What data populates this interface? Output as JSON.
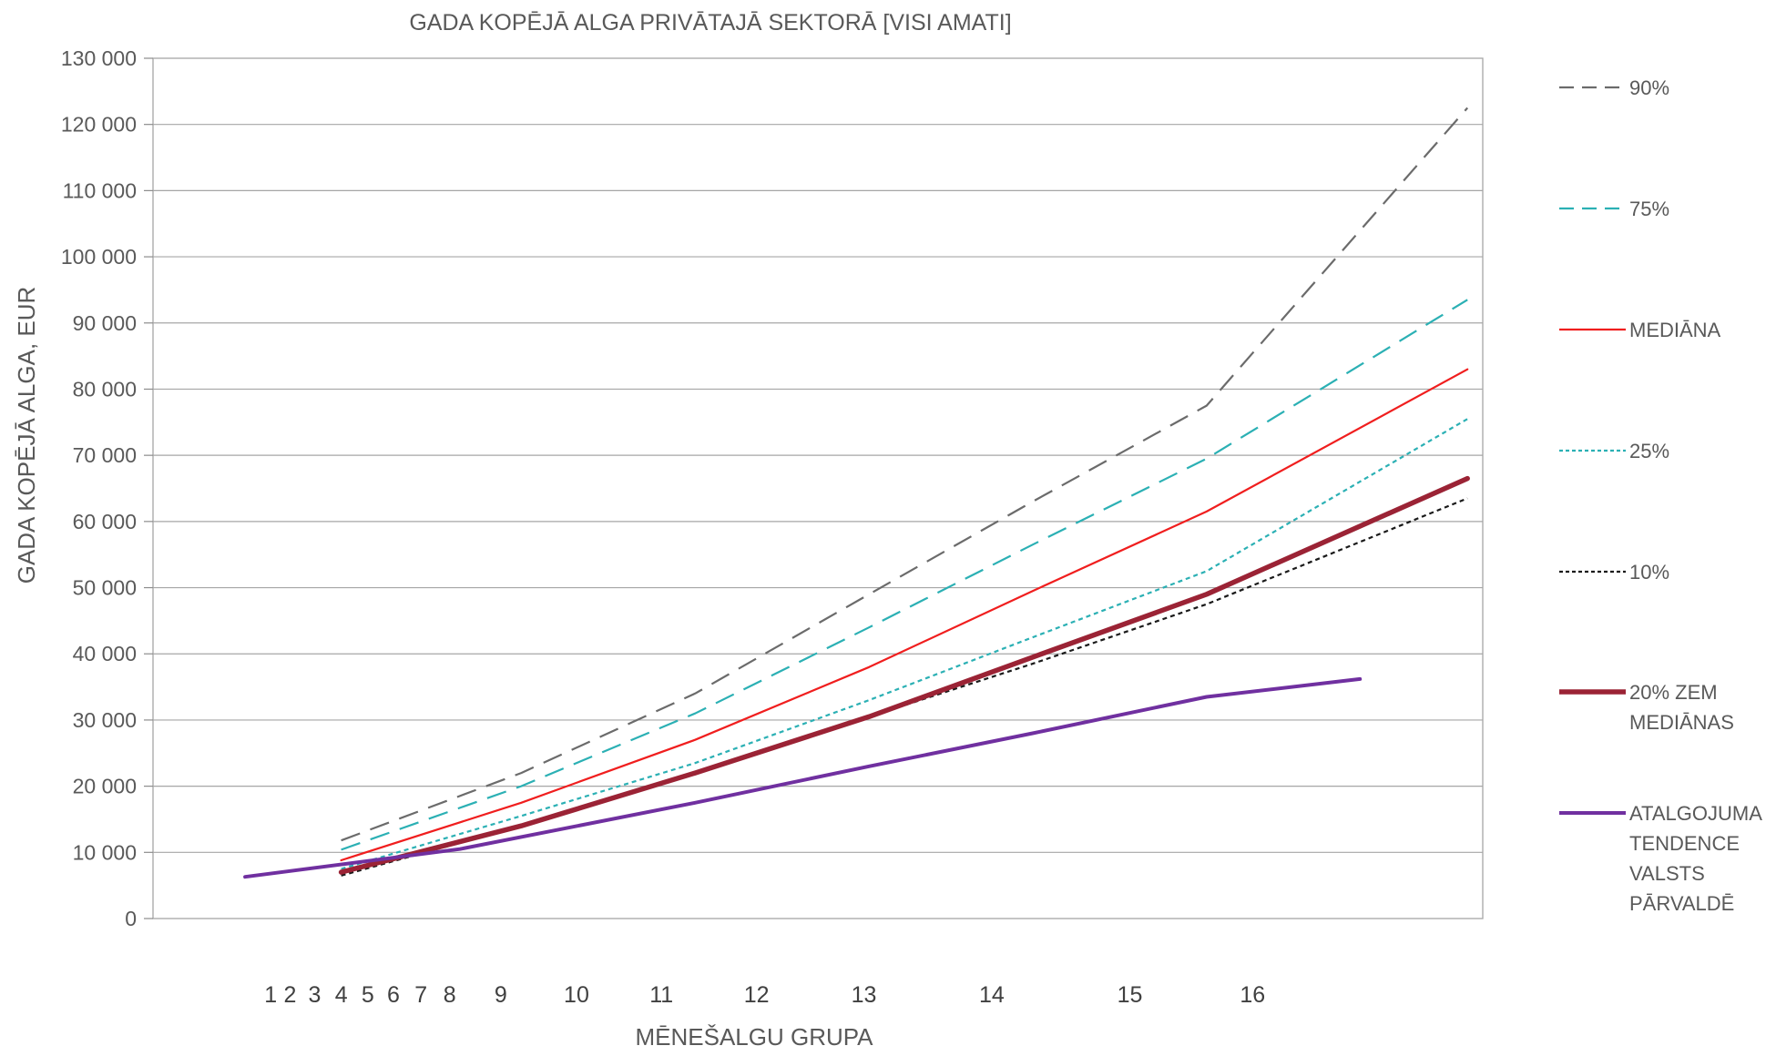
{
  "chart_data": {
    "type": "line",
    "title": "GADA KOPĒJĀ ALGA PRIVĀTAJĀ SEKTORĀ [VISI AMATI]",
    "xlabel": "MĒNEŠALGU GRUPA",
    "ylabel": "GADA KOPĒJĀ ALGA, EUR",
    "ylim": [
      0,
      130000
    ],
    "yticks": [
      0,
      10000,
      20000,
      30000,
      40000,
      50000,
      60000,
      70000,
      80000,
      90000,
      100000,
      110000,
      120000,
      130000
    ],
    "ytick_labels": [
      "0",
      "10 000",
      "20 000",
      "30 000",
      "40 000",
      "50 000",
      "60 000",
      "70 000",
      "80 000",
      "90 000",
      "100 000",
      "110 000",
      "120 000",
      "130 000"
    ],
    "x_tick_labels": [
      "1",
      "2",
      "3",
      "4",
      "5",
      "6",
      "7",
      "8",
      "9",
      "10",
      "11",
      "12",
      "13",
      "14",
      "15",
      "16"
    ],
    "x_tick_positions": [
      1.15,
      1.34,
      1.58,
      1.84,
      2.1,
      2.35,
      2.62,
      2.9,
      3.4,
      4.14,
      4.97,
      5.9,
      6.95,
      8.2,
      9.55,
      10.75
    ],
    "xlim": [
      0,
      13
    ],
    "grid": true,
    "legend_position": "right",
    "series": [
      {
        "name": "90%",
        "color": "#6b6b6b",
        "style": "longdash",
        "width": 2.2,
        "x": [
          1.84,
          3.6,
          5.3,
          7.0,
          8.6,
          10.3,
          12.85
        ],
        "values": [
          11800,
          22000,
          34000,
          49000,
          63000,
          77500,
          122500
        ]
      },
      {
        "name": "75%",
        "color": "#2bb0b4",
        "style": "longdash",
        "width": 2.2,
        "x": [
          1.84,
          3.6,
          5.3,
          7.0,
          8.6,
          10.3,
          12.85
        ],
        "values": [
          10400,
          20000,
          31000,
          44000,
          56500,
          69500,
          93500
        ]
      },
      {
        "name": "MEDIĀNA",
        "color": "#f01e1e",
        "style": "solid",
        "width": 2.2,
        "x": [
          1.84,
          3.6,
          5.3,
          7.0,
          8.6,
          10.3,
          12.85
        ],
        "values": [
          8800,
          17500,
          27000,
          38000,
          49500,
          61500,
          83000
        ]
      },
      {
        "name": "25%",
        "color": "#2bb0b4",
        "style": "dotted",
        "width": 2.2,
        "x": [
          1.84,
          3.6,
          5.3,
          7.0,
          8.6,
          10.3,
          12.85
        ],
        "values": [
          7500,
          15500,
          23500,
          33000,
          42500,
          52500,
          75500
        ]
      },
      {
        "name": "10%",
        "color": "#1a1a1a",
        "style": "dotted",
        "width": 2.2,
        "x": [
          1.84,
          3.6,
          5.3,
          7.0,
          8.6,
          10.3,
          12.85
        ],
        "values": [
          6500,
          14000,
          22000,
          30500,
          38500,
          47500,
          63500
        ]
      },
      {
        "name": "20% ZEM MEDIĀNAS",
        "color": "#9b2335",
        "style": "solid",
        "width": 5.5,
        "x": [
          1.84,
          3.6,
          5.3,
          7.0,
          8.6,
          10.3,
          12.85
        ],
        "values": [
          7000,
          14000,
          22000,
          30500,
          39500,
          49000,
          66500
        ]
      },
      {
        "name": "ATALGOJUMA TENDENCE VALSTS PĀRVALDĒ",
        "color": "#7030a0",
        "style": "solid",
        "width": 4.0,
        "x": [
          0.9,
          3.0,
          5.3,
          7.0,
          8.6,
          10.3,
          11.8
        ],
        "values": [
          6300,
          10500,
          17500,
          23000,
          28000,
          33500,
          36200
        ]
      }
    ]
  },
  "legend": {
    "items": [
      {
        "lines": [
          "90%"
        ]
      },
      {
        "lines": [
          "75%"
        ]
      },
      {
        "lines": [
          "MEDIĀNA"
        ]
      },
      {
        "lines": [
          "25%"
        ]
      },
      {
        "lines": [
          "10%"
        ]
      },
      {
        "lines": [
          "20% ZEM",
          "MEDIĀNAS"
        ]
      },
      {
        "lines": [
          "ATALGOJUMA",
          "TENDENCE",
          "VALSTS",
          "PĀRVALDĒ"
        ]
      }
    ]
  }
}
